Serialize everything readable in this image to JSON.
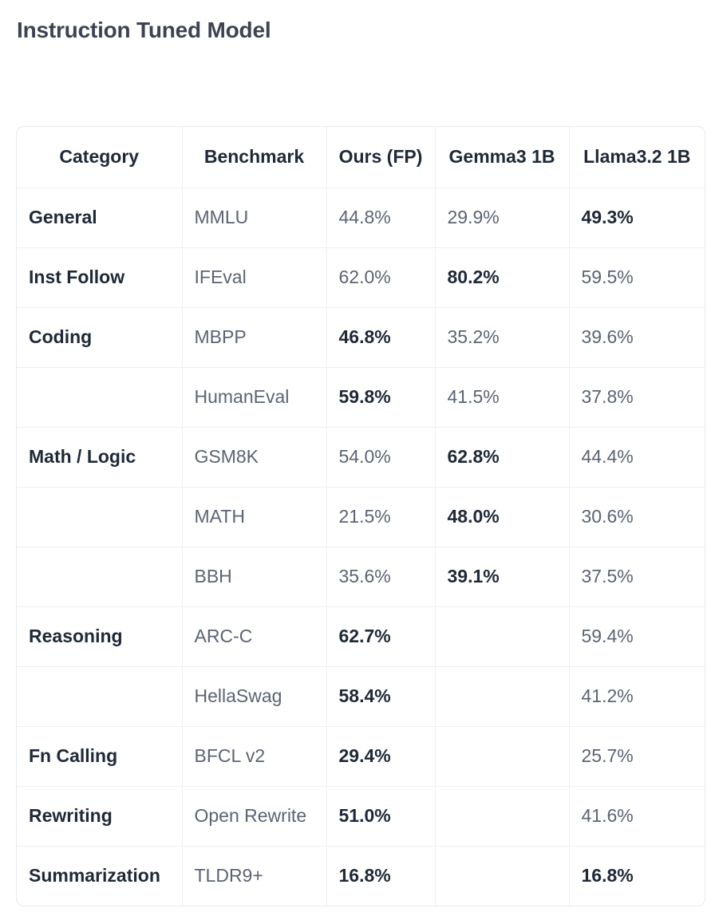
{
  "page": {
    "title": "Instruction Tuned Model"
  },
  "table": {
    "headers": [
      "Category",
      "Benchmark",
      "Ours (FP)",
      "Gemma3 1B",
      "Llama3.2 1B"
    ],
    "rows": [
      {
        "category": "General",
        "benchmark": "MMLU",
        "ours": "44.8%",
        "gemma": "29.9%",
        "llama": "49.3%",
        "best": "llama"
      },
      {
        "category": "Inst Follow",
        "benchmark": "IFEval",
        "ours": "62.0%",
        "gemma": "80.2%",
        "llama": "59.5%",
        "best": "gemma"
      },
      {
        "category": "Coding",
        "benchmark": "MBPP",
        "ours": "46.8%",
        "gemma": "35.2%",
        "llama": "39.6%",
        "best": "ours"
      },
      {
        "category": "",
        "benchmark": "HumanEval",
        "ours": "59.8%",
        "gemma": "41.5%",
        "llama": "37.8%",
        "best": "ours"
      },
      {
        "category": "Math / Logic",
        "benchmark": "GSM8K",
        "ours": "54.0%",
        "gemma": "62.8%",
        "llama": "44.4%",
        "best": "gemma"
      },
      {
        "category": "",
        "benchmark": "MATH",
        "ours": "21.5%",
        "gemma": "48.0%",
        "llama": "30.6%",
        "best": "gemma"
      },
      {
        "category": "",
        "benchmark": "BBH",
        "ours": "35.6%",
        "gemma": "39.1%",
        "llama": "37.5%",
        "best": "gemma"
      },
      {
        "category": "Reasoning",
        "benchmark": "ARC-C",
        "ours": "62.7%",
        "gemma": "",
        "llama": "59.4%",
        "best": "ours"
      },
      {
        "category": "",
        "benchmark": "HellaSwag",
        "ours": "58.4%",
        "gemma": "",
        "llama": "41.2%",
        "best": "ours"
      },
      {
        "category": "Fn Calling",
        "benchmark": "BFCL v2",
        "ours": "29.4%",
        "gemma": "",
        "llama": "25.7%",
        "best": "ours"
      },
      {
        "category": "Rewriting",
        "benchmark": "Open Rewrite",
        "ours": "51.0%",
        "gemma": "",
        "llama": "41.6%",
        "best": "ours"
      },
      {
        "category": "Summarization",
        "benchmark": "TLDR9+",
        "ours": "16.8%",
        "gemma": "",
        "llama": "16.8%",
        "best": "ours,llama"
      }
    ]
  }
}
